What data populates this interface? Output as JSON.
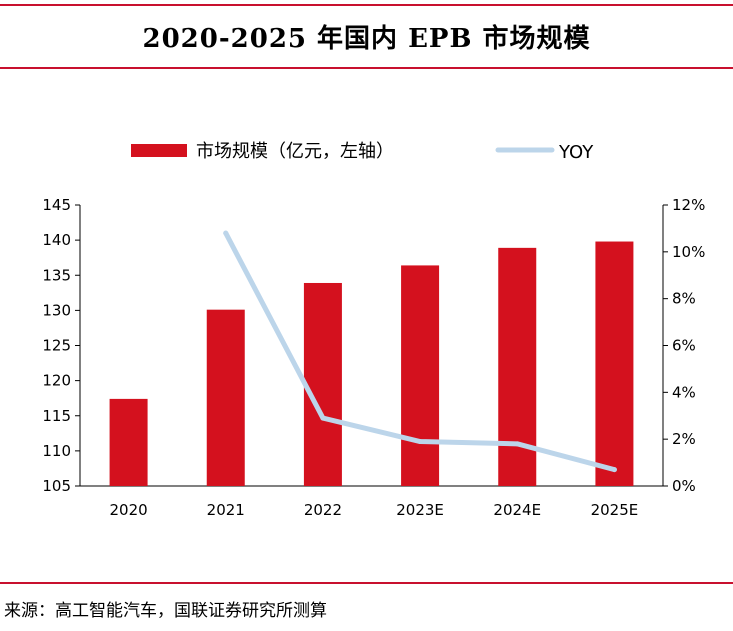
{
  "title": "2020-2025 年国内 EPB 市场规模",
  "source": "来源：高工智能汽车，国联证券研究所测算",
  "colors": {
    "rule": "#c8102e",
    "bar": "#d4111e",
    "line": "#bcd5ea"
  },
  "chart_data": {
    "type": "bar",
    "categories": [
      "2020",
      "2021",
      "2022",
      "2023E",
      "2024E",
      "2025E"
    ],
    "series": [
      {
        "name": "市场规模（亿元，左轴）",
        "type": "bar",
        "axis": "left",
        "values": [
          117.4,
          130.1,
          133.9,
          136.4,
          138.9,
          139.8
        ]
      },
      {
        "name": "YOY",
        "type": "line",
        "axis": "right",
        "unit": "%",
        "values": [
          null,
          10.8,
          2.9,
          1.9,
          1.8,
          0.7
        ]
      }
    ],
    "y_left": {
      "lim": [
        105,
        145
      ],
      "ticks": [
        "105",
        "110",
        "115",
        "120",
        "125",
        "130",
        "135",
        "140",
        "145"
      ]
    },
    "y_right": {
      "lim": [
        0,
        12
      ],
      "ticks": [
        "0%",
        "2%",
        "4%",
        "6%",
        "8%",
        "10%",
        "12%"
      ]
    },
    "legend_position": "top",
    "grid": false
  }
}
